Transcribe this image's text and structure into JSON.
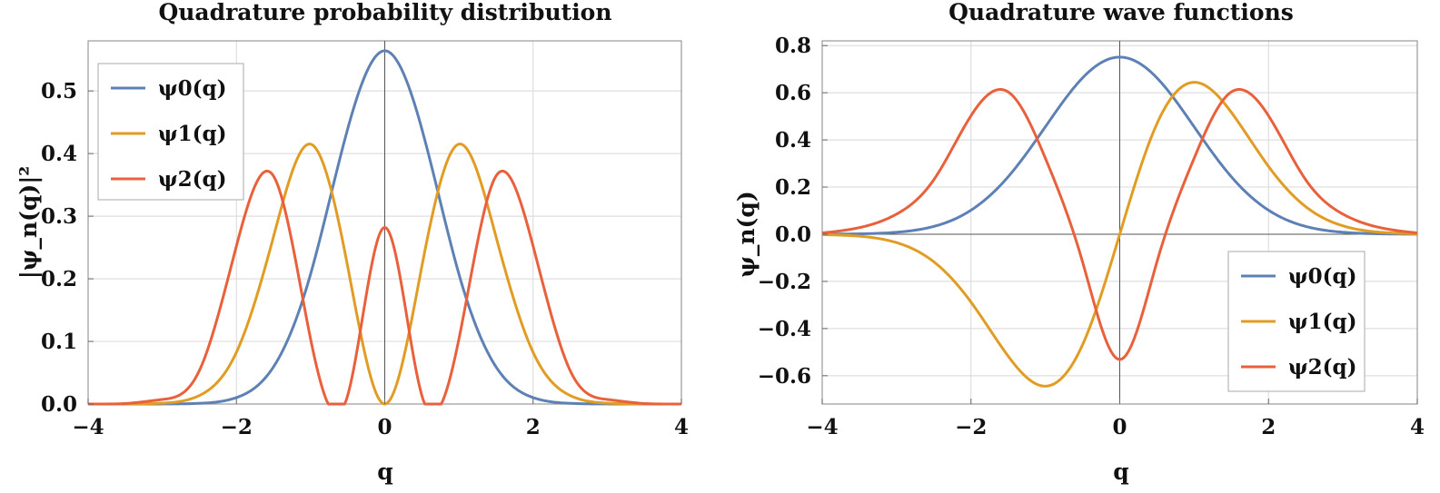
{
  "chart_data": [
    {
      "type": "line",
      "title": "Quadrature probability distribution",
      "xlabel": "q",
      "ylabel": "|ψ_n(q)|²",
      "xlim": [
        -4,
        4
      ],
      "ylim": [
        0,
        0.58
      ],
      "xticks": [
        -4,
        -2,
        0,
        2,
        4
      ],
      "xtick_labels": [
        "−4",
        "−2",
        "0",
        "2",
        "4"
      ],
      "yticks": [
        0.0,
        0.1,
        0.2,
        0.3,
        0.4,
        0.5
      ],
      "ytick_labels": [
        "0.0",
        "0.1",
        "0.2",
        "0.3",
        "0.4",
        "0.5"
      ],
      "grid": true,
      "legend_position": "top-left",
      "series": [
        {
          "name": "ψ0(q)",
          "color": "#5E81B5",
          "x": [
            -4,
            -3.5,
            -3,
            -2.5,
            -2,
            -1.5,
            -1,
            -0.5,
            0,
            0.5,
            1,
            1.5,
            2,
            2.5,
            3,
            3.5,
            4
          ],
          "values": [
            0.0,
            0.0,
            0.0001,
            0.0011,
            0.0103,
            0.0594,
            0.2076,
            0.4394,
            0.5642,
            0.4394,
            0.2076,
            0.0594,
            0.0103,
            0.0011,
            0.0001,
            0.0,
            0.0
          ]
        },
        {
          "name": "ψ1(q)",
          "color": "#E19C24",
          "x": [
            -4,
            -3.5,
            -3,
            -2.5,
            -2,
            -1.5,
            -1,
            -0.5,
            0,
            0.5,
            1,
            1.5,
            2,
            2.5,
            3,
            3.5,
            4
          ],
          "values": [
            0.0,
            0.0002,
            0.0014,
            0.0136,
            0.0827,
            0.2673,
            0.4151,
            0.2197,
            0.0,
            0.2197,
            0.4151,
            0.2673,
            0.0827,
            0.0136,
            0.0014,
            0.0002,
            0.0
          ]
        },
        {
          "name": "ψ2(q)",
          "color": "#E8613C",
          "x": [
            -4,
            -3.5,
            -3,
            -2.5,
            -2,
            -1.5,
            -1,
            -0.5,
            0,
            0.5,
            1,
            1.5,
            2,
            2.5,
            3,
            3.5,
            4
          ],
          "values": [
            0.0,
            0.0008,
            0.0073,
            0.0534,
            0.2524,
            0.3641,
            0.1038,
            0.0137,
            0.2821,
            0.0137,
            0.1038,
            0.3641,
            0.2524,
            0.0534,
            0.0073,
            0.0008,
            0.0
          ]
        }
      ]
    },
    {
      "type": "line",
      "title": "Quadrature wave functions",
      "xlabel": "q",
      "ylabel": "ψ_n(q)",
      "xlim": [
        -4,
        4
      ],
      "ylim": [
        -0.72,
        0.82
      ],
      "xticks": [
        -4,
        -2,
        0,
        2,
        4
      ],
      "xtick_labels": [
        "−4",
        "−2",
        "0",
        "2",
        "4"
      ],
      "yticks": [
        -0.6,
        -0.4,
        -0.2,
        0.0,
        0.2,
        0.4,
        0.6,
        0.8
      ],
      "ytick_labels": [
        "−0.6",
        "−0.4",
        "−0.2",
        "0.0",
        "0.2",
        "0.4",
        "0.6",
        "0.8"
      ],
      "grid": true,
      "legend_position": "bottom-right",
      "series": [
        {
          "name": "ψ0(q)",
          "color": "#5E81B5",
          "x": [
            -4,
            -3.5,
            -3,
            -2.5,
            -2,
            -1.5,
            -1,
            -0.5,
            0,
            0.5,
            1,
            1.5,
            2,
            2.5,
            3,
            3.5,
            4
          ],
          "values": [
            0.0003,
            0.0017,
            0.0084,
            0.0331,
            0.1019,
            0.2437,
            0.4556,
            0.6629,
            0.7511,
            0.6629,
            0.4556,
            0.2437,
            0.1019,
            0.0331,
            0.0084,
            0.0017,
            0.0003
          ]
        },
        {
          "name": "ψ1(q)",
          "color": "#E19C24",
          "x": [
            -4,
            -3.5,
            -3,
            -2.5,
            -2,
            -1.5,
            -1,
            -0.5,
            0,
            0.5,
            1,
            1.5,
            2,
            2.5,
            3,
            3.5,
            4
          ],
          "values": [
            -0.0019,
            -0.0084,
            -0.0356,
            -0.1169,
            -0.2876,
            -0.517,
            -0.6443,
            -0.4687,
            0.0,
            0.4687,
            0.6443,
            0.517,
            0.2876,
            0.1169,
            0.0356,
            0.0084,
            0.0019
          ]
        },
        {
          "name": "ψ2(q)",
          "color": "#E8613C",
          "x": [
            -4,
            -3.5,
            -3,
            -2.5,
            -2,
            -1.5,
            -1,
            -0.5,
            0,
            0.5,
            1,
            1.5,
            2,
            2.5,
            3,
            3.5,
            4
          ],
          "values": [
            0.0055,
            0.028,
            0.0854,
            0.231,
            0.5024,
            0.6034,
            0.3222,
            -0.1172,
            -0.5311,
            -0.1172,
            0.3222,
            0.6034,
            0.5024,
            0.231,
            0.0854,
            0.028,
            0.0055
          ]
        }
      ]
    }
  ]
}
